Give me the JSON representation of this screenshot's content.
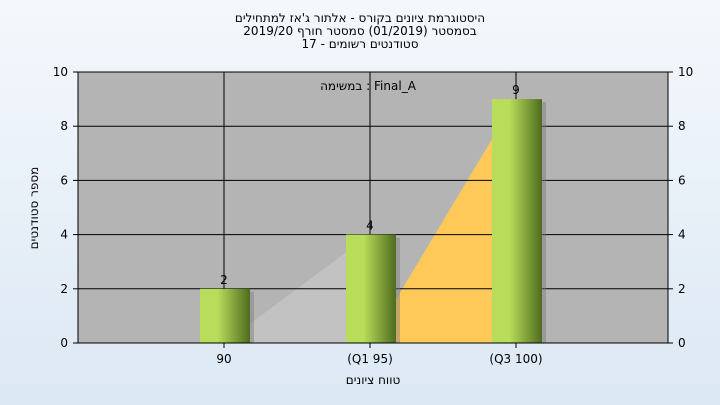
{
  "chart_data": {
    "type": "bar",
    "title_lines": [
      "היסטוגרמת ציונים בקורס - אלתור ג'אז למתחילים",
      "בסמסטר  (01/2019)  סמסטר חורף 2019/20",
      "סטודנטים רשומים - 17"
    ],
    "annotation": "במשימה : Final_A",
    "xlabel": "טווח ציונים",
    "ylabel": "מספר סטודנטים",
    "categories": [
      "90",
      "(Q1 95)",
      "(Q3 100)"
    ],
    "values": [
      2,
      4,
      9
    ],
    "ylim": [
      0,
      10
    ],
    "yticks": [
      0,
      2,
      4,
      6,
      8,
      10
    ],
    "grid": true,
    "colors": {
      "plot_bg": "#b4b4b4",
      "bar_light": "#b8dd5a",
      "bar_dark": "#4e6c1e",
      "area_gray": "#c2c2c2",
      "area_yellow": "#ffc95a",
      "grid": "#000000"
    }
  }
}
